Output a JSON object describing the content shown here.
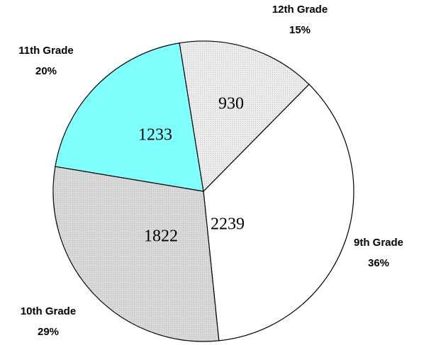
{
  "chart_data": {
    "type": "pie",
    "categories": [
      "9th Grade",
      "10th Grade",
      "11th Grade",
      "12th Grade"
    ],
    "values": [
      2239,
      1822,
      1233,
      930
    ],
    "percent_labels": [
      "36%",
      "29%",
      "20%",
      "15%"
    ],
    "colors": [
      "#ffffff",
      "#d9d9d9",
      "#80ffff",
      "#ececec"
    ]
  }
}
